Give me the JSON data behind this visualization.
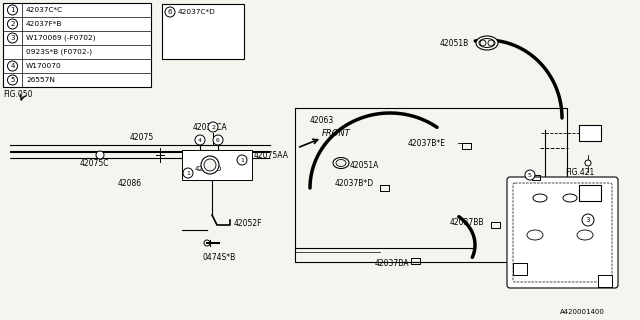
{
  "bg_color": "#f5f5f0",
  "line_color": "#000000",
  "text_color": "#000000",
  "fig_width": 6.4,
  "fig_height": 3.2,
  "parts_list_rows": [
    [
      "1",
      "42037C*C"
    ],
    [
      "2",
      "42037F*B"
    ],
    [
      "3",
      "W170069 (-F0702)"
    ],
    [
      "",
      "0923S*B (F0702-)"
    ],
    [
      "4",
      "W170070"
    ],
    [
      "5",
      "26557N"
    ]
  ],
  "watermark": "A420001400"
}
